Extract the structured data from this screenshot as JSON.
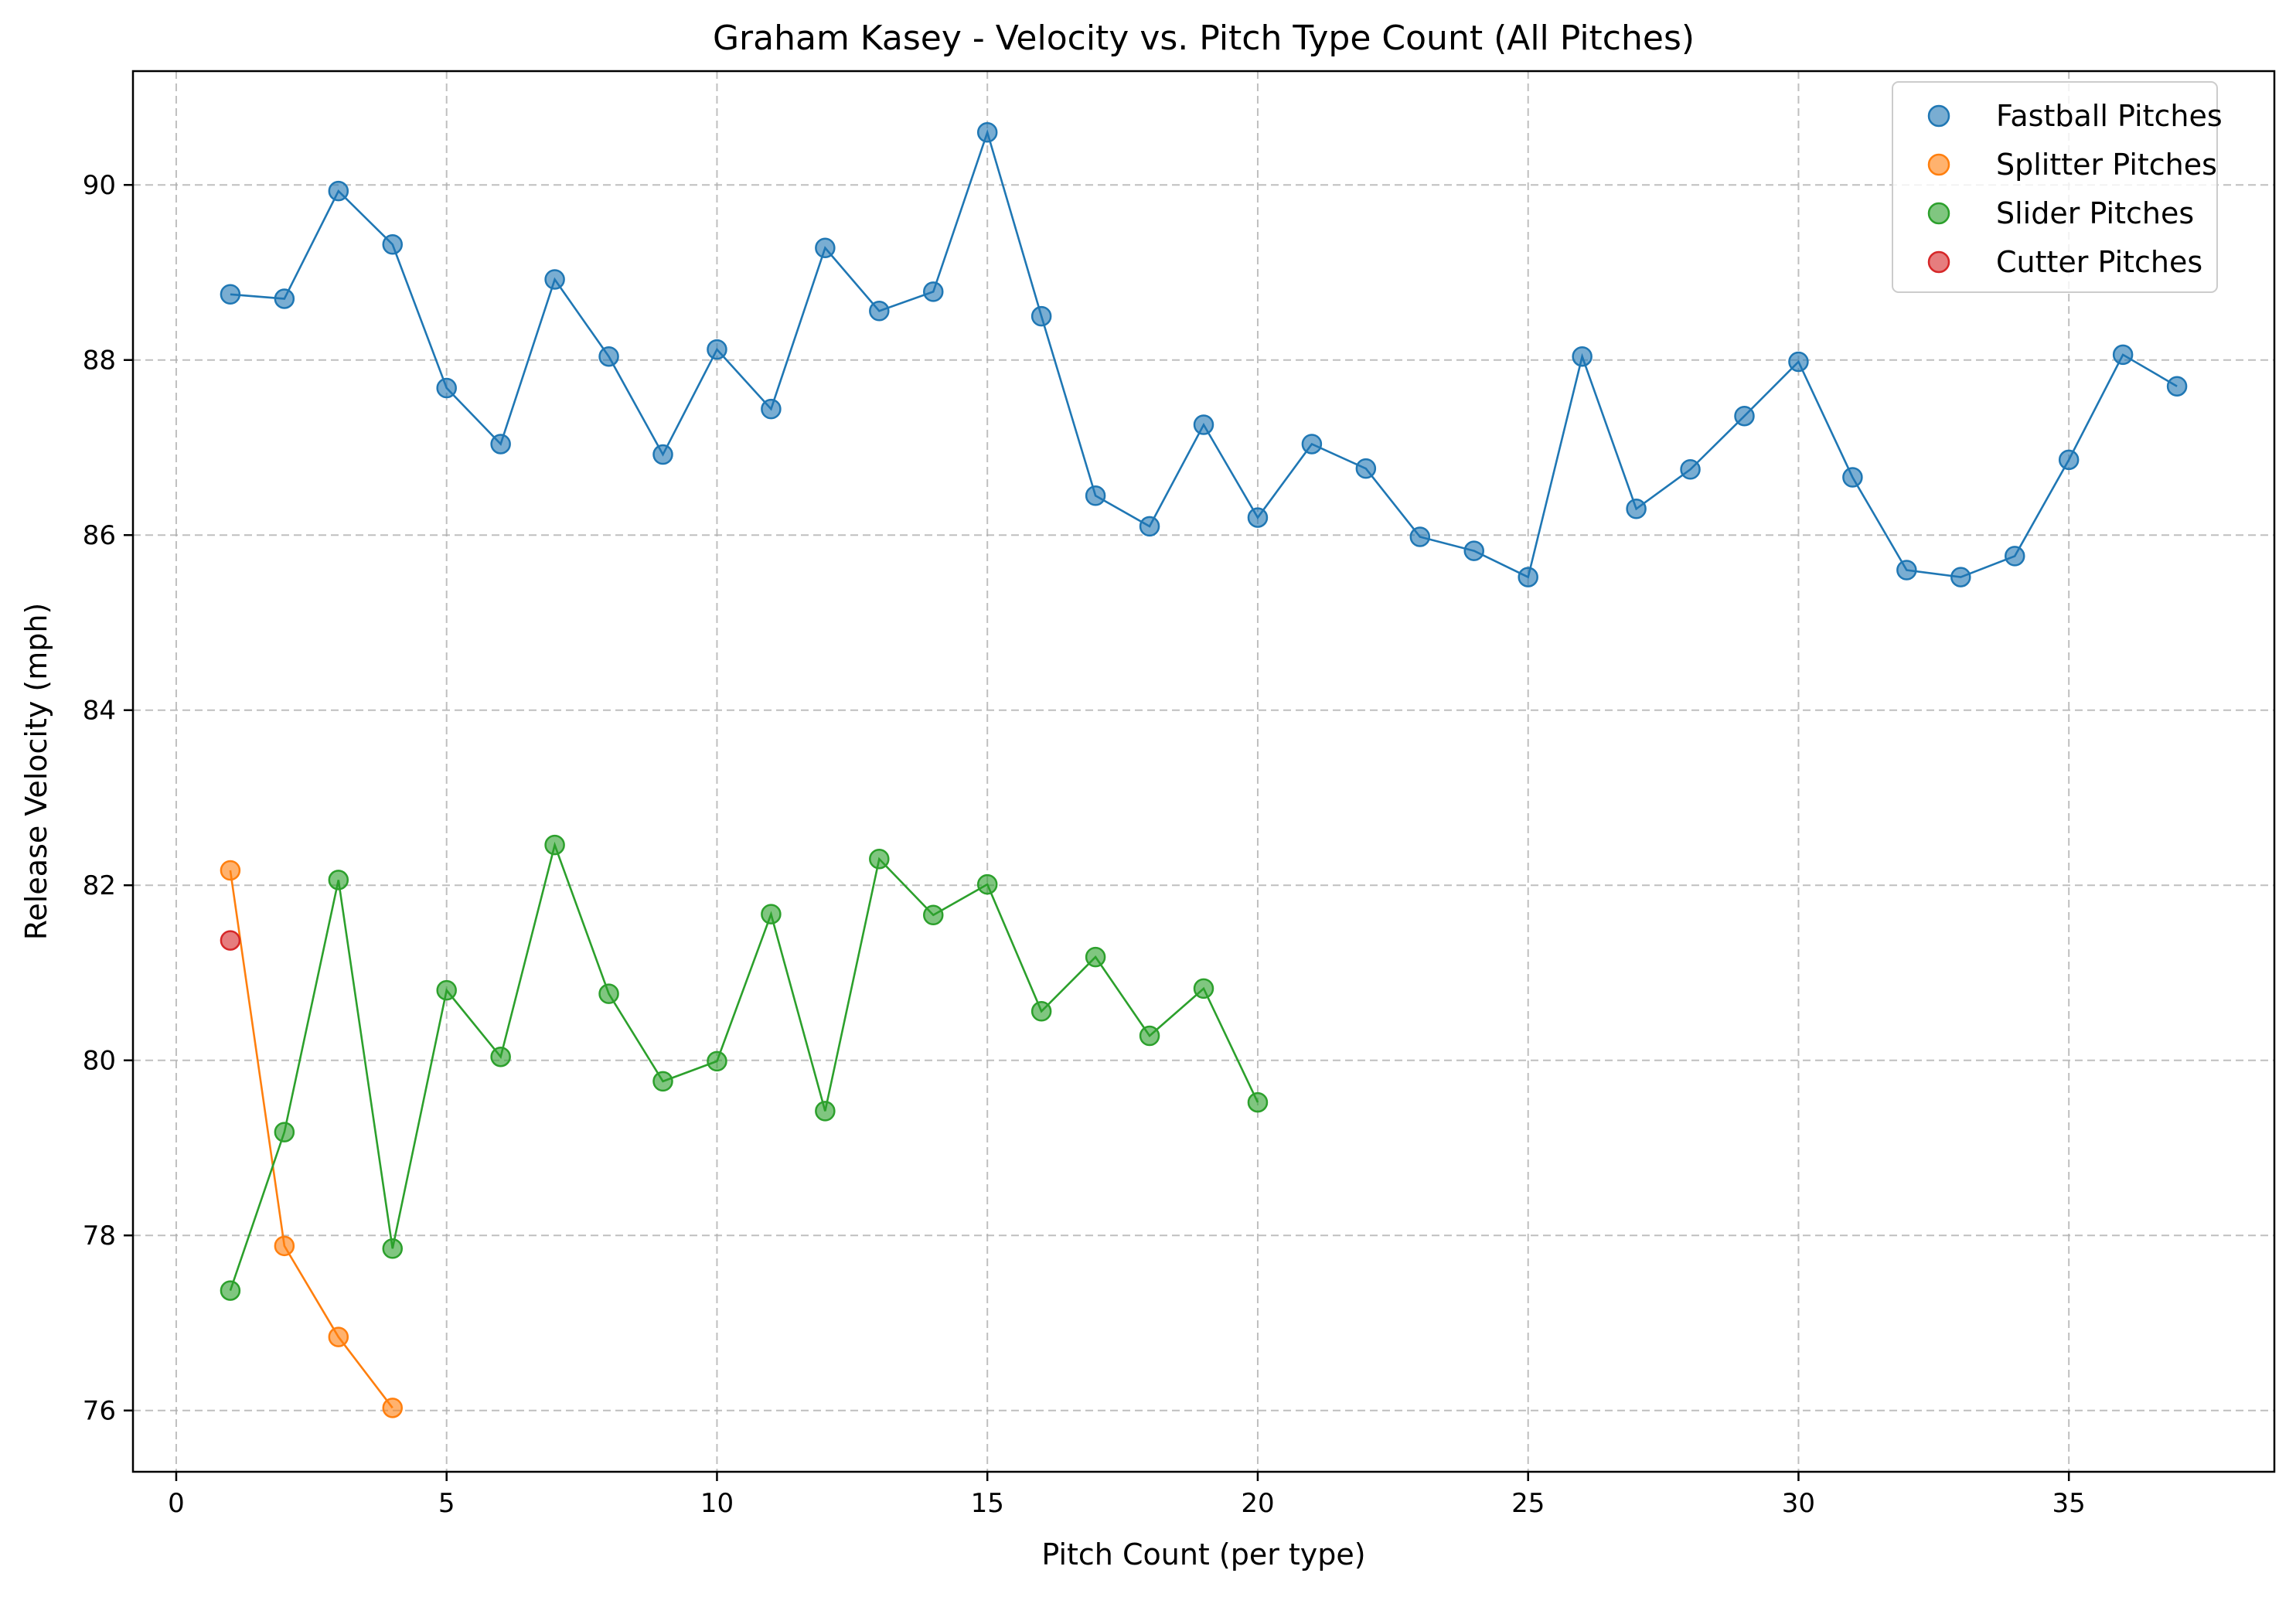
{
  "chart_data": {
    "type": "scatter",
    "title": "Graham Kasey - Velocity vs. Pitch Type Count (All Pitches)",
    "xlabel": "Pitch Count (per type)",
    "ylabel": "Release Velocity (mph)",
    "xlim": [
      -0.8,
      38.8
    ],
    "ylim": [
      75.3,
      91.3
    ],
    "xticks": [
      0,
      5,
      10,
      15,
      20,
      25,
      30,
      35
    ],
    "yticks": [
      76,
      78,
      80,
      82,
      84,
      86,
      88,
      90
    ],
    "grid": true,
    "legend_position": "top-right",
    "series": [
      {
        "name": "Fastball Pitches",
        "color": "#1f77b4",
        "connected": true,
        "x": [
          1,
          2,
          3,
          4,
          5,
          6,
          7,
          8,
          9,
          10,
          11,
          12,
          13,
          14,
          15,
          16,
          17,
          18,
          19,
          20,
          21,
          22,
          23,
          24,
          25,
          26,
          27,
          28,
          29,
          30,
          31,
          32,
          33,
          34,
          35,
          36,
          37
        ],
        "y": [
          88.75,
          88.7,
          89.93,
          89.32,
          87.68,
          87.04,
          88.92,
          88.04,
          86.92,
          88.12,
          87.44,
          89.28,
          88.56,
          88.78,
          90.6,
          88.5,
          86.45,
          86.1,
          87.26,
          86.2,
          87.04,
          86.76,
          85.98,
          85.82,
          85.52,
          88.04,
          86.3,
          86.75,
          87.36,
          87.98,
          86.66,
          85.6,
          85.52,
          85.76,
          86.86,
          88.06,
          87.7
        ]
      },
      {
        "name": "Splitter Pitches",
        "color": "#ff7f0e",
        "connected": true,
        "x": [
          1,
          2,
          3,
          4
        ],
        "y": [
          82.17,
          77.88,
          76.84,
          76.03
        ]
      },
      {
        "name": "Slider Pitches",
        "color": "#2ca02c",
        "connected": true,
        "x": [
          1,
          2,
          3,
          4,
          5,
          6,
          7,
          8,
          9,
          10,
          11,
          12,
          13,
          14,
          15,
          16,
          17,
          18,
          19,
          20
        ],
        "y": [
          77.37,
          79.18,
          82.06,
          77.85,
          80.8,
          80.04,
          82.46,
          80.76,
          79.76,
          79.99,
          81.67,
          79.42,
          82.3,
          81.66,
          82.01,
          80.56,
          81.18,
          80.28,
          80.82,
          79.52
        ]
      },
      {
        "name": "Cutter Pitches",
        "color": "#d62728",
        "connected": false,
        "x": [
          1
        ],
        "y": [
          81.37
        ]
      }
    ]
  }
}
